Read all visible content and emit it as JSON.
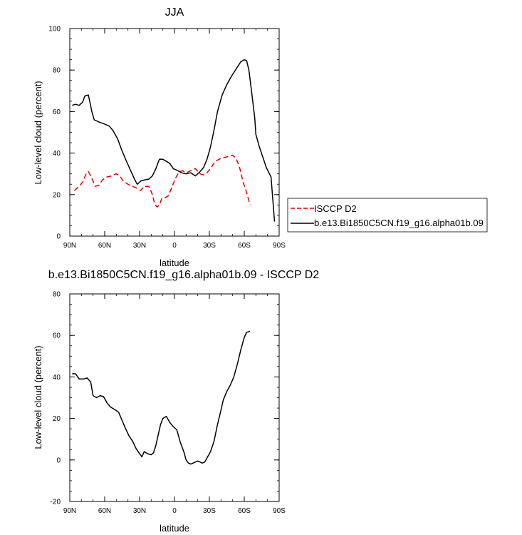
{
  "charts": [
    {
      "title": "JJA",
      "type": "line",
      "xlabel": "latitude",
      "ylabel": "Low-level cloud (percent)",
      "xlim": [
        -90,
        90
      ],
      "ylim": [
        0,
        100
      ],
      "x_ticks": [
        -90,
        -60,
        -30,
        0,
        30,
        60,
        90
      ],
      "x_tick_labels": [
        "90N",
        "60N",
        "30N",
        "0",
        "30S",
        "60S",
        "90S"
      ],
      "y_ticks": [
        0,
        20,
        40,
        60,
        80,
        100
      ],
      "y_tick_labels": [
        "0",
        "20",
        "40",
        "60",
        "80",
        "100"
      ],
      "legend_position": "right",
      "series": [
        {
          "name": "ISCCP D2",
          "color": "#e00000",
          "dash": true,
          "points": [
            [
              -86,
              22
            ],
            [
              -82,
              24
            ],
            [
              -79,
              26
            ],
            [
              -76,
              30
            ],
            [
              -74,
              31
            ],
            [
              -72,
              29
            ],
            [
              -68,
              24
            ],
            [
              -65,
              24.5
            ],
            [
              -62,
              27
            ],
            [
              -58,
              28.5
            ],
            [
              -54,
              29
            ],
            [
              -50,
              30
            ],
            [
              -47,
              29
            ],
            [
              -44,
              26.5
            ],
            [
              -40,
              25
            ],
            [
              -36,
              24
            ],
            [
              -32,
              23
            ],
            [
              -29,
              22
            ],
            [
              -26,
              24
            ],
            [
              -22,
              24
            ],
            [
              -19,
              20
            ],
            [
              -17,
              15.5
            ],
            [
              -15,
              14
            ],
            [
              -13,
              15
            ],
            [
              -11,
              18
            ],
            [
              -8,
              18.5
            ],
            [
              -5,
              19.5
            ],
            [
              -3,
              22.5
            ],
            [
              1,
              28
            ],
            [
              4,
              31
            ],
            [
              7,
              31.5
            ],
            [
              10,
              30.5
            ],
            [
              14,
              31.5
            ],
            [
              18,
              32.5
            ],
            [
              22,
              30
            ],
            [
              25,
              29.5
            ],
            [
              28,
              30.5
            ],
            [
              31,
              32.5
            ],
            [
              35,
              36
            ],
            [
              40,
              37.5
            ],
            [
              44,
              38
            ],
            [
              47,
              38.5
            ],
            [
              50,
              39
            ],
            [
              53,
              37.5
            ],
            [
              56,
              33
            ],
            [
              59,
              26
            ],
            [
              62,
              21
            ],
            [
              65,
              15
            ]
          ]
        },
        {
          "name": "b.e13.Bi1850C5CN.f19_g16.alpha01b.09",
          "color": "#000000",
          "dash": false,
          "points": [
            [
              -88,
              63
            ],
            [
              -85,
              63.5
            ],
            [
              -82,
              63
            ],
            [
              -79,
              64.5
            ],
            [
              -77,
              67.5
            ],
            [
              -74,
              68
            ],
            [
              -71,
              60
            ],
            [
              -69,
              56
            ],
            [
              -65,
              55
            ],
            [
              -60,
              54
            ],
            [
              -56,
              53
            ],
            [
              -53,
              51
            ],
            [
              -49,
              47
            ],
            [
              -45,
              41
            ],
            [
              -42,
              37
            ],
            [
              -38,
              32
            ],
            [
              -34,
              27
            ],
            [
              -32,
              25
            ],
            [
              -29,
              26.5
            ],
            [
              -26,
              27
            ],
            [
              -22,
              27.5
            ],
            [
              -19,
              29
            ],
            [
              -16,
              32.5
            ],
            [
              -13,
              37
            ],
            [
              -10,
              37
            ],
            [
              -7,
              36
            ],
            [
              -4,
              35
            ],
            [
              -1,
              32.5
            ],
            [
              3,
              31.5
            ],
            [
              6,
              30.5
            ],
            [
              10,
              30
            ],
            [
              14,
              30.5
            ],
            [
              18,
              29
            ],
            [
              21,
              30.5
            ],
            [
              25,
              33
            ],
            [
              28,
              37
            ],
            [
              31,
              43
            ],
            [
              34,
              51
            ],
            [
              37,
              60
            ],
            [
              41,
              68
            ],
            [
              45,
              73
            ],
            [
              49,
              77
            ],
            [
              53,
              80.5
            ],
            [
              57,
              84
            ],
            [
              60,
              85
            ],
            [
              62,
              84.5
            ],
            [
              64,
              80
            ],
            [
              66,
              71
            ],
            [
              69,
              57
            ],
            [
              70,
              49
            ],
            [
              73,
              43
            ],
            [
              76,
              38
            ],
            [
              79,
              33
            ],
            [
              83,
              28.5
            ],
            [
              86,
              7
            ]
          ]
        }
      ]
    },
    {
      "title": "b.e13.Bi1850C5CN.f19_g16.alpha01b.09 - ISCCP D2",
      "type": "line",
      "xlabel": "latitude",
      "ylabel": "Low-level cloud (percent)",
      "xlim": [
        -90,
        90
      ],
      "ylim": [
        -20,
        80
      ],
      "x_ticks": [
        -90,
        -60,
        -30,
        0,
        30,
        60,
        90
      ],
      "x_tick_labels": [
        "90N",
        "60N",
        "30N",
        "0",
        "30S",
        "60S",
        "90S"
      ],
      "y_ticks": [
        -20,
        0,
        20,
        40,
        60,
        80
      ],
      "y_tick_labels": [
        "-20",
        "0",
        "20",
        "40",
        "60",
        "80"
      ],
      "series": [
        {
          "color": "#000000",
          "dash": false,
          "points": [
            [
              -88,
              41.5
            ],
            [
              -85,
              41.5
            ],
            [
              -82,
              39
            ],
            [
              -78,
              39
            ],
            [
              -75,
              39.5
            ],
            [
              -72,
              37.5
            ],
            [
              -70,
              31
            ],
            [
              -67,
              30
            ],
            [
              -64,
              31
            ],
            [
              -61,
              30.5
            ],
            [
              -58,
              27.5
            ],
            [
              -55,
              25.5
            ],
            [
              -52,
              24.5
            ],
            [
              -48,
              23
            ],
            [
              -45,
              19
            ],
            [
              -42,
              15
            ],
            [
              -39,
              11.5
            ],
            [
              -36,
              9
            ],
            [
              -33,
              5.5
            ],
            [
              -30,
              3
            ],
            [
              -28,
              1.5
            ],
            [
              -26,
              4
            ],
            [
              -23,
              3
            ],
            [
              -20,
              2.5
            ],
            [
              -18,
              3.5
            ],
            [
              -16,
              7
            ],
            [
              -14,
              12
            ],
            [
              -12,
              17
            ],
            [
              -10,
              20
            ],
            [
              -7,
              21
            ],
            [
              -4,
              18
            ],
            [
              -1,
              16
            ],
            [
              2,
              14.5
            ],
            [
              5,
              8.5
            ],
            [
              8,
              4
            ],
            [
              10,
              0
            ],
            [
              12,
              -1.5
            ],
            [
              14,
              -2
            ],
            [
              16,
              -1.5
            ],
            [
              18,
              -1
            ],
            [
              20,
              -0.5
            ],
            [
              22,
              -1
            ],
            [
              24,
              -1.5
            ],
            [
              26,
              -1
            ],
            [
              28,
              1
            ],
            [
              31,
              4
            ],
            [
              34,
              9
            ],
            [
              37,
              17
            ],
            [
              40,
              24
            ],
            [
              42,
              29
            ],
            [
              45,
              33
            ],
            [
              48,
              36
            ],
            [
              51,
              40
            ],
            [
              54,
              46
            ],
            [
              57,
              53
            ],
            [
              60,
              59
            ],
            [
              62,
              61.5
            ],
            [
              65,
              62
            ]
          ]
        }
      ]
    }
  ],
  "chart_data": [
    {
      "type": "line",
      "title": "JJA",
      "xlabel": "latitude",
      "ylabel": "Low-level cloud (percent)",
      "ylim": [
        0,
        100
      ],
      "x_tick_labels": [
        "90N",
        "60N",
        "30N",
        "0",
        "30S",
        "60S",
        "90S"
      ],
      "series": [
        {
          "name": "ISCCP D2",
          "x": [
            -86,
            -76,
            -68,
            -54,
            -44,
            -32,
            -26,
            -15,
            -5,
            7,
            18,
            25,
            35,
            50,
            59,
            65
          ],
          "values": [
            22,
            30,
            24,
            30,
            26.5,
            23,
            24,
            14,
            19.5,
            31.5,
            32.5,
            29.5,
            36,
            39,
            26,
            15
          ]
        },
        {
          "name": "b.e13.Bi1850C5CN.f19_g16.alpha01b.09",
          "x": [
            -88,
            -74,
            -69,
            -56,
            -45,
            -32,
            -19,
            -10,
            3,
            18,
            28,
            41,
            53,
            60,
            66,
            70,
            83,
            86
          ],
          "values": [
            63,
            68,
            56,
            53,
            41,
            25,
            29,
            37,
            31.5,
            29,
            37,
            68,
            80.5,
            85,
            71,
            49,
            28.5,
            7
          ]
        }
      ]
    },
    {
      "type": "line",
      "title": "b.e13.Bi1850C5CN.f19_g16.alpha01b.09 - ISCCP D2",
      "xlabel": "latitude",
      "ylabel": "Low-level cloud (percent)",
      "ylim": [
        -20,
        80
      ],
      "x_tick_labels": [
        "90N",
        "60N",
        "30N",
        "0",
        "30S",
        "60S",
        "90S"
      ],
      "series": [
        {
          "x": [
            -88,
            -75,
            -67,
            -55,
            -45,
            -36,
            -28,
            -20,
            -10,
            -7,
            2,
            10,
            14,
            24,
            34,
            42,
            51,
            57,
            62,
            65
          ],
          "values": [
            41.5,
            39.5,
            30,
            25.5,
            19,
            9,
            1.5,
            2.5,
            20,
            21,
            14.5,
            0,
            -2,
            -1.5,
            9,
            29,
            40,
            53,
            61.5,
            62
          ]
        }
      ]
    }
  ]
}
